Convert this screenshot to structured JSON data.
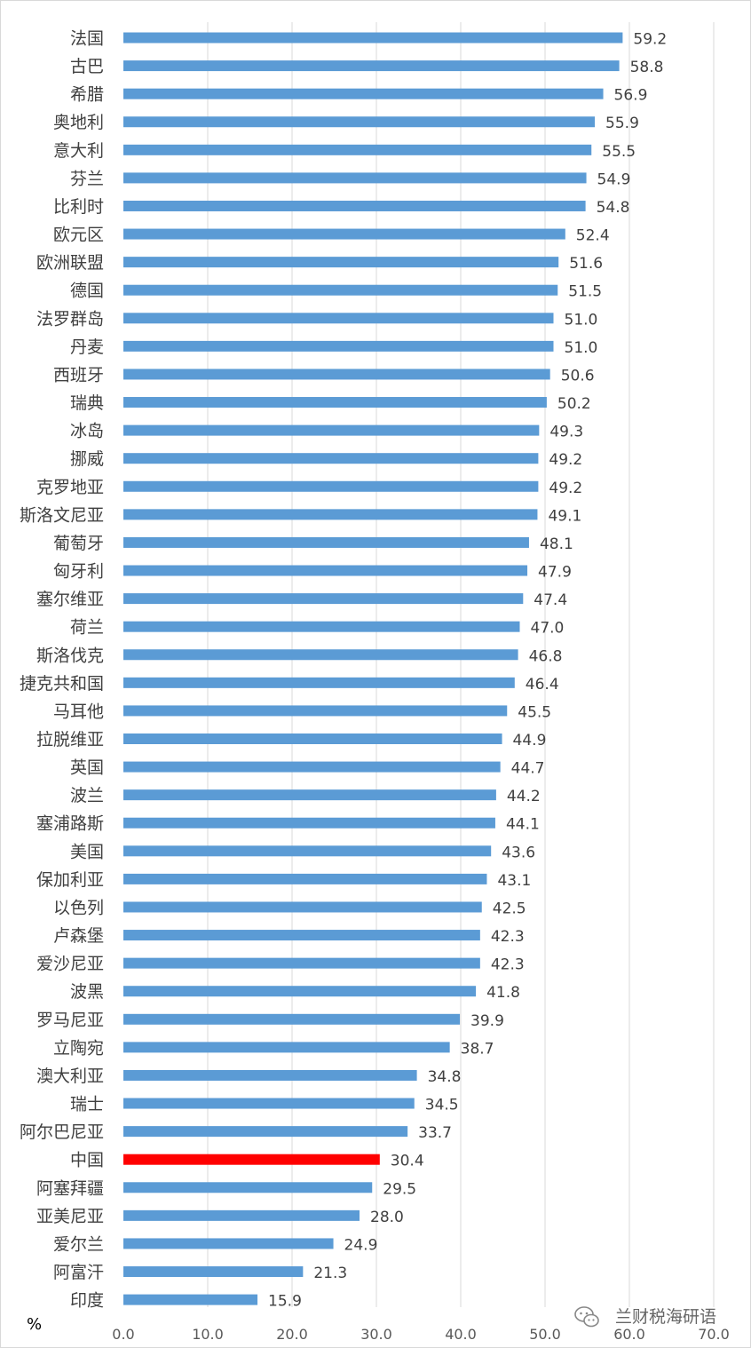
{
  "chart_data": {
    "type": "bar",
    "orientation": "horizontal",
    "categories": [
      "法国",
      "古巴",
      "希腊",
      "奥地利",
      "意大利",
      "芬兰",
      "比利时",
      "欧元区",
      "欧洲联盟",
      "德国",
      "法罗群岛",
      "丹麦",
      "西班牙",
      "瑞典",
      "冰岛",
      "挪威",
      "克罗地亚",
      "斯洛文尼亚",
      "葡萄牙",
      "匈牙利",
      "塞尔维亚",
      "荷兰",
      "斯洛伐克",
      "捷克共和国",
      "马耳他",
      "拉脱维亚",
      "英国",
      "波兰",
      "塞浦路斯",
      "美国",
      "保加利亚",
      "以色列",
      "卢森堡",
      "爱沙尼亚",
      "波黑",
      "罗马尼亚",
      "立陶宛",
      "澳大利亚",
      "瑞士",
      "阿尔巴尼亚",
      "中国",
      "阿塞拜疆",
      "亚美尼亚",
      "爱尔兰",
      "阿富汗",
      "印度"
    ],
    "values": [
      59.2,
      58.8,
      56.9,
      55.9,
      55.5,
      54.9,
      54.8,
      52.4,
      51.6,
      51.5,
      51.0,
      51.0,
      50.6,
      50.2,
      49.3,
      49.2,
      49.2,
      49.1,
      48.1,
      47.9,
      47.4,
      47.0,
      46.8,
      46.4,
      45.5,
      44.9,
      44.7,
      44.2,
      44.1,
      43.6,
      43.1,
      42.5,
      42.3,
      42.3,
      41.8,
      39.9,
      38.7,
      34.8,
      34.5,
      33.7,
      30.4,
      29.5,
      28.0,
      24.9,
      21.3,
      15.9
    ],
    "value_labels": [
      "59.2",
      "58.8",
      "56.9",
      "55.9",
      "55.5",
      "54.9",
      "54.8",
      "52.4",
      "51.6",
      "51.5",
      "51.0",
      "51.0",
      "50.6",
      "50.2",
      "49.3",
      "49.2",
      "49.2",
      "49.1",
      "48.1",
      "47.9",
      "47.4",
      "47.0",
      "46.8",
      "46.4",
      "45.5",
      "44.9",
      "44.7",
      "44.2",
      "44.1",
      "43.6",
      "43.1",
      "42.5",
      "42.3",
      "42.3",
      "41.8",
      "39.9",
      "38.7",
      "34.8",
      "34.5",
      "33.7",
      "30.4",
      "29.5",
      "28.0",
      "24.9",
      "21.3",
      "15.9"
    ],
    "highlight": "中国",
    "xlim": [
      0,
      70
    ],
    "x_ticks": [
      "0.0",
      "10.0",
      "20.0",
      "30.0",
      "40.0",
      "50.0",
      "60.0",
      "70.0"
    ],
    "x_tick_values": [
      0,
      10,
      20,
      30,
      40,
      50,
      60,
      70
    ],
    "unit": "%",
    "grid": "vertical",
    "legend": "none",
    "colors": {
      "bar": "#5b9bd5",
      "highlight": "#ff0000",
      "label": "#404040",
      "highlight_label": "#ff0000",
      "grid": "#d9d9d9"
    }
  },
  "watermark": {
    "text": "兰财税海研语",
    "icon": "wechat-icon"
  }
}
